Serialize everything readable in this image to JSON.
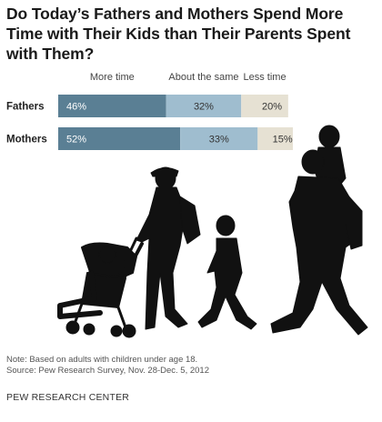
{
  "title": "Do Today’s Fathers and Mothers Spend More Time with Their Kids than Their Parents Spent with Them?",
  "note": "Note: Based on adults with children under age 18.",
  "source": "Source: Pew Research Survey, Nov. 28-Dec. 5, 2012",
  "footer": "PEW RESEARCH CENTER",
  "chart_data": {
    "type": "bar",
    "stacked": true,
    "orientation": "horizontal",
    "categories": [
      "Fathers",
      "Mothers"
    ],
    "series": [
      {
        "name": "More time",
        "values": [
          46,
          52
        ],
        "color": "#5a7f94"
      },
      {
        "name": "About the same",
        "values": [
          32,
          33
        ],
        "color": "#9fbdcf"
      },
      {
        "name": "Less time",
        "values": [
          20,
          15
        ],
        "color": "#e6e1d3"
      }
    ],
    "value_suffix": "%",
    "legend_position": "top",
    "title": "Do Today’s Fathers and Mothers Spend More Time with Their Kids than Their Parents Spent with Them?"
  }
}
